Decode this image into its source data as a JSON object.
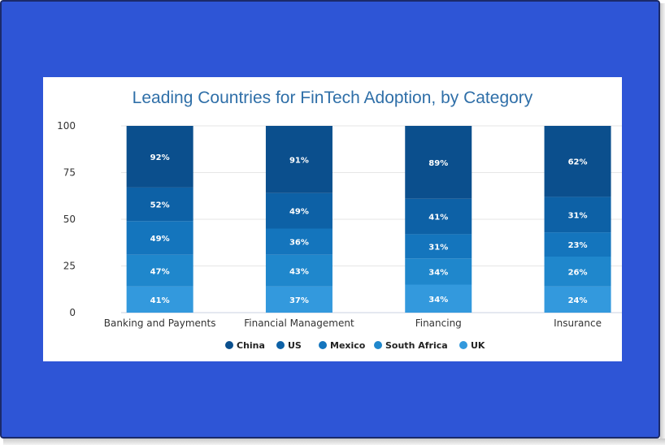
{
  "chart_data": {
    "type": "bar",
    "stacked": true,
    "title": "Leading Countries for FinTech Adoption, by Category",
    "categories": [
      "Banking and Payments",
      "Financial Management",
      "Financing",
      "Insurance"
    ],
    "series": [
      {
        "name": "UK",
        "color": "#3399dd",
        "segment_heights": [
          14,
          14,
          15,
          14
        ],
        "labels": [
          "41%",
          "37%",
          "34%",
          "24%"
        ]
      },
      {
        "name": "South Africa",
        "color": "#1f87cc",
        "segment_heights": [
          17,
          17,
          14,
          16
        ],
        "labels": [
          "47%",
          "43%",
          "34%",
          "26%"
        ]
      },
      {
        "name": "Mexico",
        "color": "#1475bd",
        "segment_heights": [
          18,
          14,
          13,
          13
        ],
        "labels": [
          "49%",
          "36%",
          "31%",
          "23%"
        ]
      },
      {
        "name": "US",
        "color": "#0d61a6",
        "segment_heights": [
          18,
          19,
          19,
          19
        ],
        "labels": [
          "52%",
          "49%",
          "41%",
          "31%"
        ]
      },
      {
        "name": "China",
        "color": "#0b4f8d",
        "segment_heights": [
          33,
          36,
          39,
          38
        ],
        "labels": [
          "92%",
          "91%",
          "89%",
          "62%"
        ]
      }
    ],
    "legend_order": [
      "China",
      "US",
      "Mexico",
      "South Africa",
      "UK"
    ],
    "ylim": [
      0,
      100
    ],
    "yticks": [
      "0",
      "25",
      "50",
      "75",
      "100"
    ],
    "xlabel": "",
    "ylabel": "",
    "grid": true,
    "legend_position": "bottom"
  }
}
